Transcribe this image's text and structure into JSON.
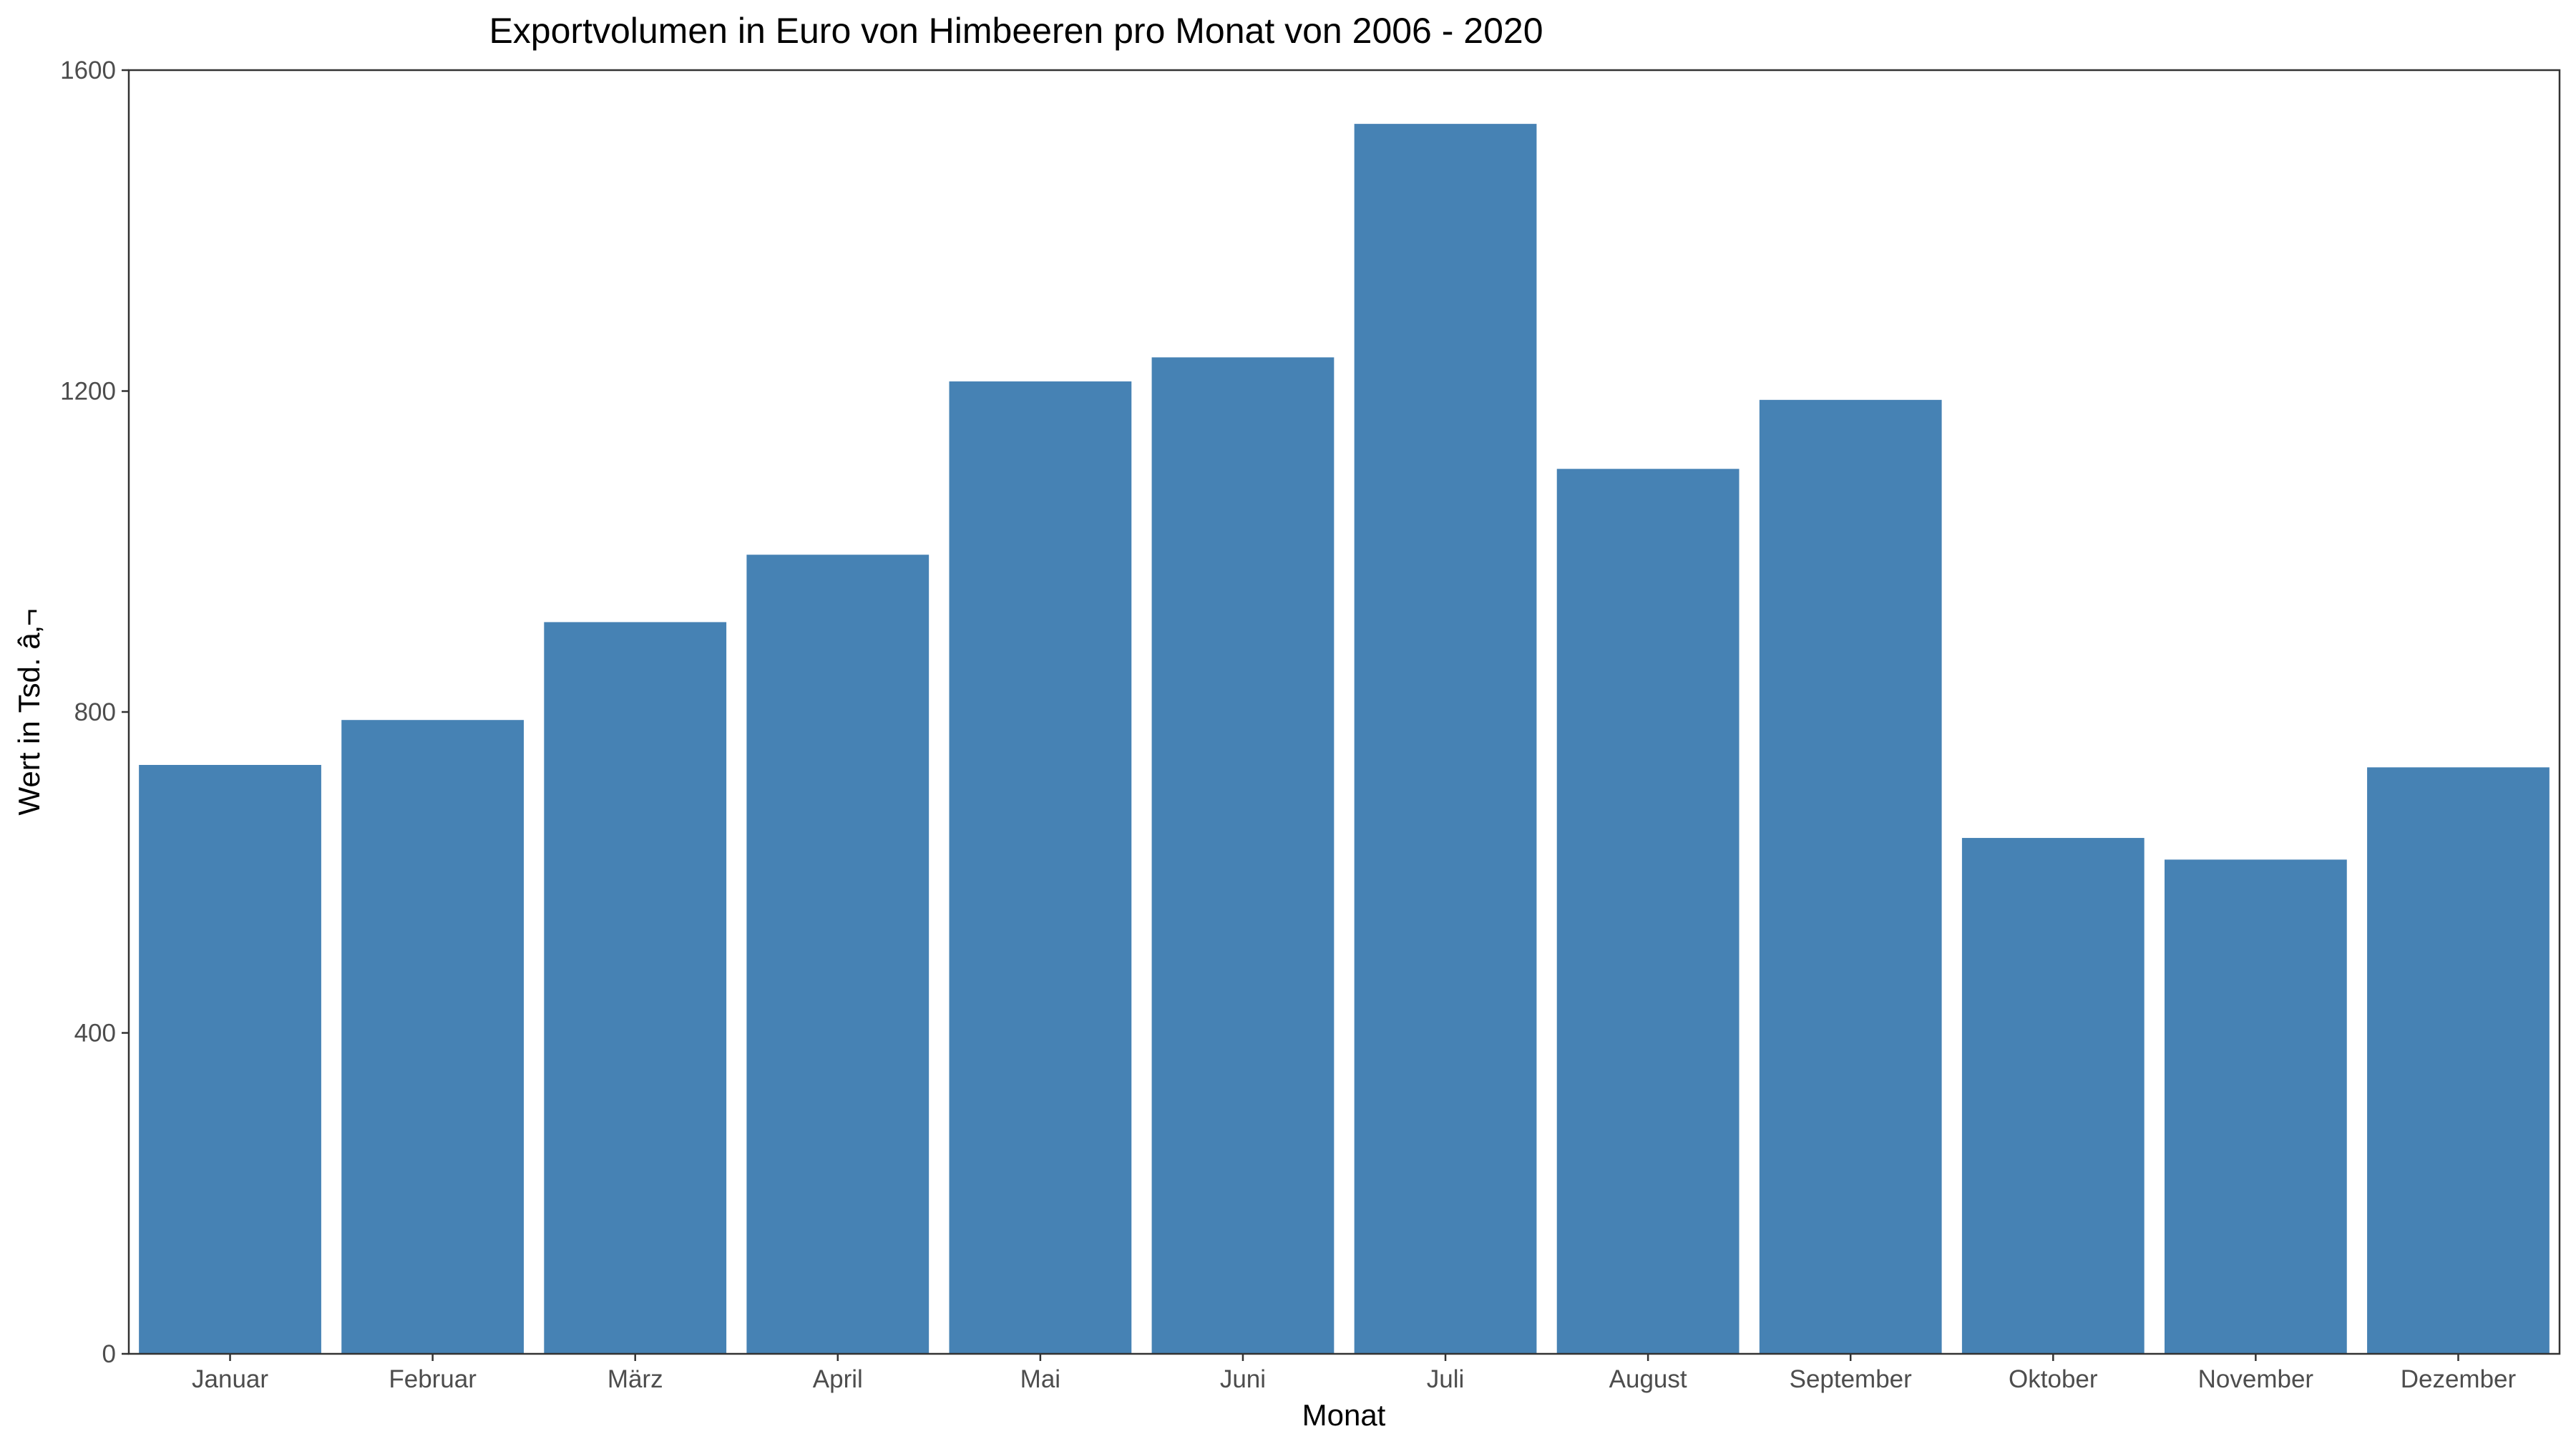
{
  "chart_data": {
    "type": "bar",
    "title": "Exportvolumen in Euro von Himbeeren pro Monat von 2006 - 2020",
    "xlabel": "Monat",
    "ylabel": "Wert in Tsd. â‚¬",
    "categories": [
      "Januar",
      "Februar",
      "März",
      "April",
      "Mai",
      "Juni",
      "Juli",
      "August",
      "September",
      "Oktober",
      "November",
      "Dezember"
    ],
    "values": [
      734,
      790,
      912,
      996,
      1212,
      1242,
      1533,
      1103,
      1189,
      643,
      616,
      731
    ],
    "ylim": [
      0,
      1600
    ],
    "yticks": [
      0,
      400,
      800,
      1200,
      1600
    ],
    "bar_color": "#4682B4",
    "grid": false,
    "legend": "none"
  }
}
